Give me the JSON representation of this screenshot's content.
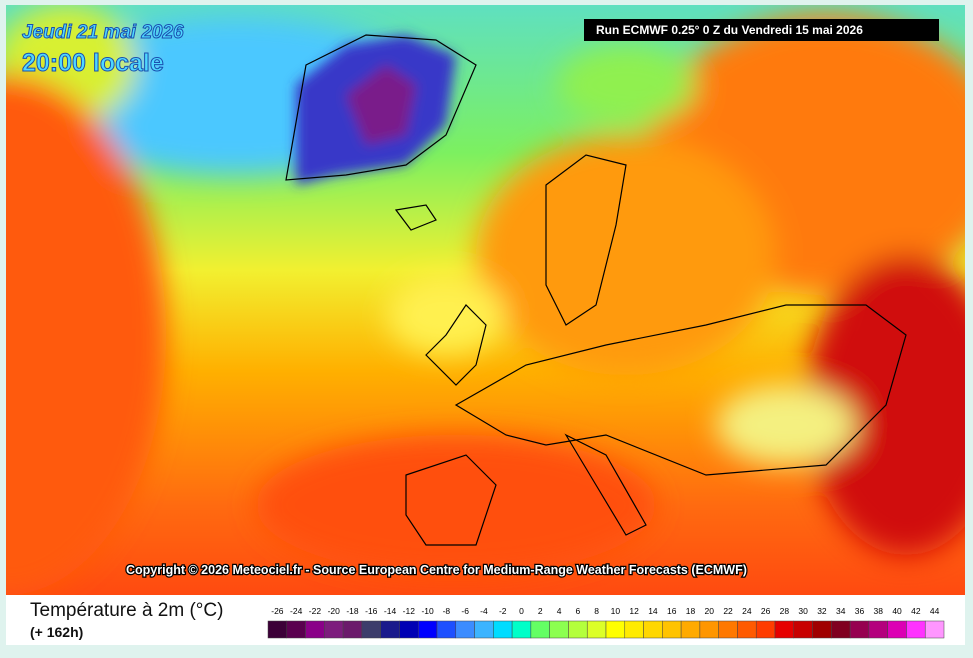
{
  "header": {
    "date": "Jeudi 21 mai 2026",
    "time": "20:00 locale",
    "run": "Run ECMWF 0.25° 0 Z du Vendredi 15 mai 2026"
  },
  "copyright": "Copyright © 2026 Meteociel.fr - Source European Centre for Medium-Range Weather Forecasts (ECMWF)",
  "legend": {
    "title": "Température à 2m (°C)",
    "subtitle": "(+ 162h)",
    "labels": [
      -26,
      -24,
      -22,
      -20,
      -18,
      -16,
      -14,
      -12,
      -10,
      -8,
      -6,
      -4,
      -2,
      0,
      2,
      4,
      6,
      8,
      10,
      12,
      14,
      16,
      18,
      20,
      22,
      24,
      26,
      28,
      30,
      32,
      34,
      36,
      38,
      40,
      42,
      44
    ],
    "colors": [
      "#3c0038",
      "#5a004f",
      "#8a0088",
      "#7d1d7d",
      "#6b1a6b",
      "#3d3d6b",
      "#1a1a8c",
      "#0000b4",
      "#0000ff",
      "#1e50ff",
      "#3c8cff",
      "#3cb4ff",
      "#00dcff",
      "#00ffc8",
      "#64ff64",
      "#8cff50",
      "#b4ff3c",
      "#dcff28",
      "#ffff00",
      "#ffeb00",
      "#ffd700",
      "#ffc300",
      "#ffaa00",
      "#ff9600",
      "#ff7800",
      "#ff5a00",
      "#ff3c00",
      "#e60000",
      "#c80000",
      "#a00000",
      "#800020",
      "#960050",
      "#b4007d",
      "#dc00b4",
      "#ff32ff",
      "#ff96ff"
    ]
  }
}
